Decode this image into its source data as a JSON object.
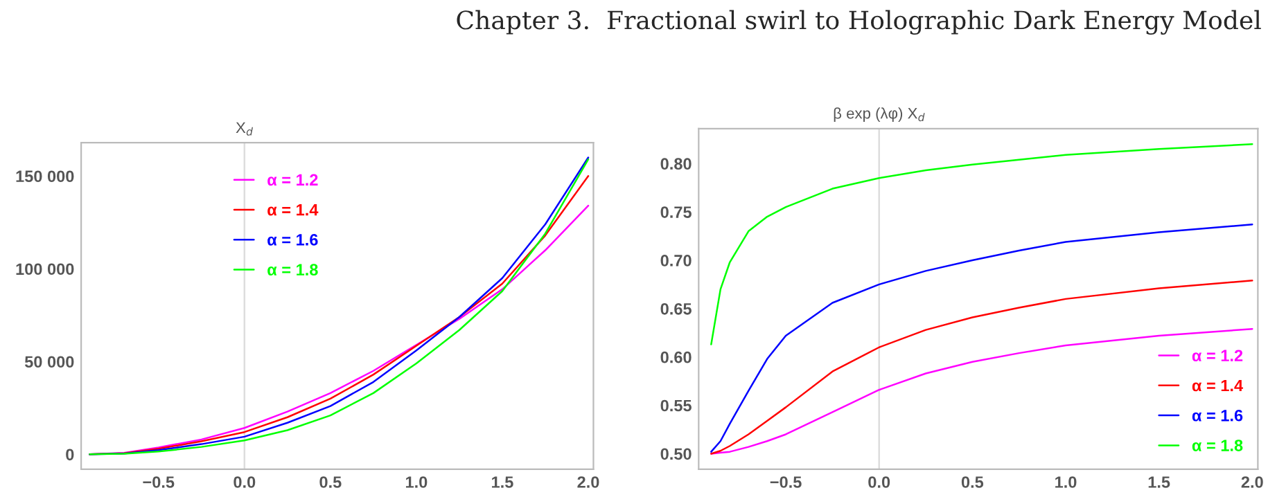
{
  "chart_data": [
    {
      "type": "line",
      "ylabel": "X$_{d}$",
      "annotations": [
        "Chapter 3.  Fractional swirl to Holographic Dark Energy Model"
      ],
      "x": [
        -0.9,
        -0.7,
        -0.5,
        -0.25,
        0,
        0.25,
        0.5,
        0.75,
        1.0,
        1.25,
        1.5,
        1.75,
        2.0
      ],
      "series": [
        {
          "name": "α = 1.2",
          "color": "#ff00ff",
          "values": [
            0,
            800,
            3700,
            8000,
            14200,
            23000,
            33000,
            45000,
            59000,
            73000,
            89000,
            110000,
            134000
          ]
        },
        {
          "name": "α = 1.4",
          "color": "#ff0000",
          "values": [
            0,
            600,
            3000,
            7000,
            12000,
            20000,
            30000,
            43000,
            58500,
            74000,
            92000,
            118000,
            150000
          ]
        },
        {
          "name": "α = 1.6",
          "color": "#0000ff",
          "values": [
            0,
            400,
            2300,
            5500,
            9500,
            17000,
            26000,
            39000,
            56000,
            74000,
            95000,
            124000,
            160000
          ]
        },
        {
          "name": "α = 1.8",
          "color": "#00ff00",
          "values": [
            0,
            300,
            1500,
            4000,
            7500,
            13000,
            21000,
            33000,
            49000,
            67000,
            88000,
            119000,
            159000
          ]
        }
      ],
      "xlim": [
        -0.95,
        2.03
      ],
      "ylim": [
        -8000,
        168000
      ],
      "xticks": [
        {
          "value": -0.5,
          "label": "−0.5"
        },
        {
          "value": 0,
          "label": "0.0"
        },
        {
          "value": 0.5,
          "label": "0.5"
        },
        {
          "value": 1.0,
          "label": "1.0"
        },
        {
          "value": 1.5,
          "label": "1.5"
        },
        {
          "value": 2.0,
          "label": "2.0"
        }
      ],
      "yticks": [
        0,
        {
          "value": 50000,
          "label": "50 000"
        },
        {
          "value": 100000,
          "label": "100 000"
        },
        {
          "value": 150000,
          "label": "150 000"
        }
      ],
      "ref_lines": [
        {
          "axis": "x",
          "value": 0,
          "color": "#dddddd"
        }
      ],
      "legend": "top left",
      "grid": false,
      "marker": "none",
      "line_style": "solid"
    },
    {
      "type": "line",
      "ylabel": "β exp (λφ) X$_{d}$",
      "x": [
        -0.9,
        -0.85,
        -0.8,
        -0.7,
        -0.6,
        -0.5,
        -0.25,
        0,
        0.25,
        0.5,
        0.75,
        1.0,
        1.5,
        2.0
      ],
      "series": [
        {
          "name": "α = 1.2",
          "color": "#ff00ff",
          "values": [
            0.5,
            0.501,
            0.502,
            0.507,
            0.513,
            0.52,
            0.543,
            0.566,
            0.583,
            0.595,
            0.604,
            0.612,
            0.622,
            0.629
          ]
        },
        {
          "name": "α = 1.4",
          "color": "#ff0000",
          "values": [
            0.5,
            0.503,
            0.508,
            0.52,
            0.534,
            0.548,
            0.585,
            0.61,
            0.628,
            0.641,
            0.651,
            0.66,
            0.671,
            0.679
          ]
        },
        {
          "name": "α = 1.6",
          "color": "#0000ff",
          "values": [
            0.502,
            0.513,
            0.531,
            0.565,
            0.598,
            0.622,
            0.656,
            0.675,
            0.689,
            0.7,
            0.71,
            0.719,
            0.729,
            0.737
          ]
        },
        {
          "name": "α = 1.8",
          "color": "#00ff00",
          "values": [
            0.613,
            0.67,
            0.698,
            0.73,
            0.745,
            0.755,
            0.774,
            0.785,
            0.793,
            0.799,
            0.804,
            0.809,
            0.815,
            0.82
          ]
        }
      ],
      "xlim": [
        -0.967,
        2.03
      ],
      "ylim": [
        0.484,
        0.836
      ],
      "xticks": [
        {
          "value": -0.5,
          "label": "−0.5"
        },
        {
          "value": 0,
          "label": "0.0"
        },
        {
          "value": 0.5,
          "label": "0.5"
        },
        {
          "value": 1.0,
          "label": "1.0"
        },
        {
          "value": 1.5,
          "label": "1.5"
        },
        {
          "value": 2.0,
          "label": "2.0"
        }
      ],
      "yticks": [
        {
          "value": 0.5,
          "label": "0.50"
        },
        {
          "value": 0.55,
          "label": "0.55"
        },
        {
          "value": 0.6,
          "label": "0.60"
        },
        {
          "value": 0.65,
          "label": "0.65"
        },
        {
          "value": 0.7,
          "label": "0.70"
        },
        {
          "value": 0.75,
          "label": "0.75"
        },
        {
          "value": 0.8,
          "label": "0.80"
        }
      ],
      "ref_lines": [
        {
          "axis": "x",
          "value": 0,
          "color": "#dddddd"
        }
      ],
      "legend": "bottom right",
      "grid": false,
      "marker": "none",
      "line_style": "solid"
    }
  ]
}
